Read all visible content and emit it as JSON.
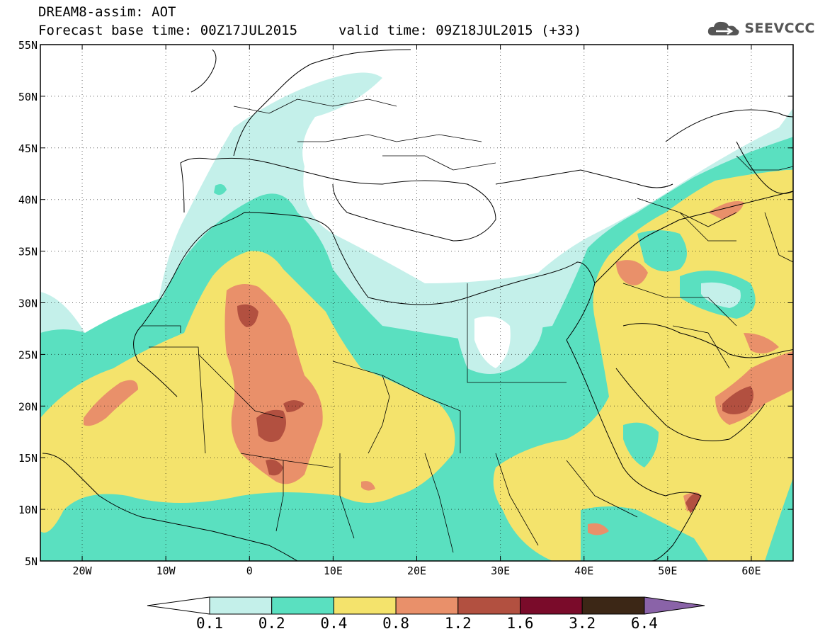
{
  "header": {
    "product": "DREAM8-assim: AOT",
    "base_time": "Forecast base time: 00Z17JUL2015",
    "valid_time": "valid time: 09Z18JUL2015 (+33)",
    "logo_text": "SEEVCCC",
    "logo_icon": "cloud-icon"
  },
  "map": {
    "lat_labels": [
      "55N",
      "50N",
      "45N",
      "40N",
      "35N",
      "30N",
      "25N",
      "20N",
      "15N",
      "10N",
      "5N"
    ],
    "lon_labels": [
      "20W",
      "10W",
      "0",
      "10E",
      "20E",
      "30E",
      "40E",
      "50E",
      "60E"
    ],
    "lon_range": [
      -25,
      65
    ],
    "lat_range": [
      5,
      55
    ],
    "grid": "dotted"
  },
  "colorbar": {
    "levels": [
      "0.1",
      "0.2",
      "0.4",
      "0.8",
      "1.2",
      "1.6",
      "3.2",
      "6.4"
    ],
    "colors": [
      "#ffffff",
      "#c4f0ea",
      "#5ae0c0",
      "#f4e36c",
      "#e9906a",
      "#b25040",
      "#7a0b2a",
      "#3c2716",
      "#8a63a8"
    ]
  }
}
